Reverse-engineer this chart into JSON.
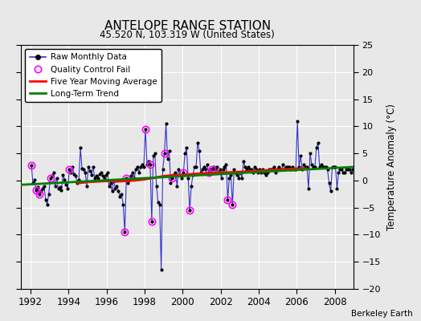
{
  "title": "ANTELOPE RANGE STATION",
  "subtitle": "45.520 N, 103.319 W (United States)",
  "ylabel": "Temperature Anomaly (°C)",
  "credit": "Berkeley Earth",
  "xlim": [
    1991.5,
    2009.0
  ],
  "ylim": [
    -20,
    25
  ],
  "yticks": [
    -20,
    -15,
    -10,
    -5,
    0,
    5,
    10,
    15,
    20,
    25
  ],
  "xticks": [
    1992,
    1994,
    1996,
    1998,
    2000,
    2002,
    2004,
    2006,
    2008
  ],
  "bg_color": "#e8e8e8",
  "fig_color": "#e8e8e8",
  "grid_color": "white",
  "raw_line_color": "#3333cc",
  "raw_dot_color": "black",
  "qc_color": "magenta",
  "moving_avg_color": "red",
  "trend_color": "green",
  "raw_monthly_data": [
    [
      1992.042,
      2.8
    ],
    [
      1992.125,
      -0.5
    ],
    [
      1992.208,
      0.2
    ],
    [
      1992.292,
      -1.8
    ],
    [
      1992.375,
      -1.2
    ],
    [
      1992.458,
      -2.5
    ],
    [
      1992.542,
      -2.0
    ],
    [
      1992.625,
      -1.5
    ],
    [
      1992.708,
      -1.0
    ],
    [
      1992.792,
      -3.5
    ],
    [
      1992.875,
      -4.5
    ],
    [
      1992.958,
      -2.5
    ],
    [
      1993.042,
      0.5
    ],
    [
      1993.125,
      0.8
    ],
    [
      1993.208,
      1.5
    ],
    [
      1993.292,
      -1.0
    ],
    [
      1993.375,
      0.5
    ],
    [
      1993.458,
      -1.5
    ],
    [
      1993.542,
      -1.2
    ],
    [
      1993.625,
      -1.8
    ],
    [
      1993.708,
      1.0
    ],
    [
      1993.792,
      0.2
    ],
    [
      1993.875,
      -0.8
    ],
    [
      1993.958,
      -1.5
    ],
    [
      1994.042,
      2.0
    ],
    [
      1994.125,
      1.5
    ],
    [
      1994.208,
      2.5
    ],
    [
      1994.292,
      1.2
    ],
    [
      1994.375,
      0.8
    ],
    [
      1994.458,
      -0.5
    ],
    [
      1994.542,
      0.2
    ],
    [
      1994.625,
      6.0
    ],
    [
      1994.708,
      2.2
    ],
    [
      1994.792,
      2.0
    ],
    [
      1994.875,
      1.5
    ],
    [
      1994.958,
      -1.0
    ],
    [
      1995.042,
      2.5
    ],
    [
      1995.125,
      1.8
    ],
    [
      1995.208,
      1.0
    ],
    [
      1995.292,
      2.5
    ],
    [
      1995.375,
      0.5
    ],
    [
      1995.458,
      0.8
    ],
    [
      1995.542,
      0.5
    ],
    [
      1995.625,
      1.2
    ],
    [
      1995.708,
      1.5
    ],
    [
      1995.792,
      0.8
    ],
    [
      1995.875,
      0.5
    ],
    [
      1995.958,
      1.0
    ],
    [
      1996.042,
      1.5
    ],
    [
      1996.125,
      -1.0
    ],
    [
      1996.208,
      -0.5
    ],
    [
      1996.292,
      -2.0
    ],
    [
      1996.375,
      0.0
    ],
    [
      1996.458,
      -1.5
    ],
    [
      1996.542,
      -1.0
    ],
    [
      1996.625,
      -2.0
    ],
    [
      1996.708,
      -3.0
    ],
    [
      1996.792,
      -2.5
    ],
    [
      1996.875,
      -4.5
    ],
    [
      1996.958,
      -9.5
    ],
    [
      1997.042,
      0.5
    ],
    [
      1997.125,
      -0.5
    ],
    [
      1997.208,
      0.2
    ],
    [
      1997.292,
      0.8
    ],
    [
      1997.375,
      1.5
    ],
    [
      1997.458,
      0.5
    ],
    [
      1997.542,
      2.0
    ],
    [
      1997.625,
      2.5
    ],
    [
      1997.708,
      1.5
    ],
    [
      1997.792,
      2.5
    ],
    [
      1997.875,
      3.0
    ],
    [
      1997.958,
      2.5
    ],
    [
      1998.042,
      9.5
    ],
    [
      1998.125,
      3.0
    ],
    [
      1998.208,
      3.5
    ],
    [
      1998.292,
      3.0
    ],
    [
      1998.375,
      -7.5
    ],
    [
      1998.458,
      4.5
    ],
    [
      1998.542,
      5.0
    ],
    [
      1998.625,
      -1.0
    ],
    [
      1998.708,
      -4.0
    ],
    [
      1998.792,
      -4.5
    ],
    [
      1998.875,
      -16.5
    ],
    [
      1998.958,
      2.0
    ],
    [
      1999.042,
      5.0
    ],
    [
      1999.125,
      10.5
    ],
    [
      1999.208,
      4.0
    ],
    [
      1999.292,
      5.5
    ],
    [
      1999.375,
      -0.5
    ],
    [
      1999.458,
      0.5
    ],
    [
      1999.542,
      1.0
    ],
    [
      1999.625,
      1.5
    ],
    [
      1999.708,
      -1.0
    ],
    [
      1999.792,
      2.0
    ],
    [
      1999.875,
      1.0
    ],
    [
      1999.958,
      0.5
    ],
    [
      2000.042,
      1.5
    ],
    [
      2000.125,
      5.0
    ],
    [
      2000.208,
      6.0
    ],
    [
      2000.292,
      0.5
    ],
    [
      2000.375,
      -5.5
    ],
    [
      2000.458,
      -1.0
    ],
    [
      2000.542,
      1.0
    ],
    [
      2000.625,
      2.5
    ],
    [
      2000.708,
      2.5
    ],
    [
      2000.792,
      7.0
    ],
    [
      2000.875,
      5.5
    ],
    [
      2000.958,
      1.5
    ],
    [
      2001.042,
      2.0
    ],
    [
      2001.125,
      2.5
    ],
    [
      2001.208,
      2.0
    ],
    [
      2001.292,
      3.0
    ],
    [
      2001.375,
      1.5
    ],
    [
      2001.458,
      2.0
    ],
    [
      2001.542,
      2.0
    ],
    [
      2001.625,
      2.5
    ],
    [
      2001.708,
      2.0
    ],
    [
      2001.792,
      2.5
    ],
    [
      2001.875,
      1.5
    ],
    [
      2001.958,
      2.0
    ],
    [
      2002.042,
      0.5
    ],
    [
      2002.125,
      2.0
    ],
    [
      2002.208,
      2.5
    ],
    [
      2002.292,
      3.0
    ],
    [
      2002.375,
      -3.5
    ],
    [
      2002.458,
      0.5
    ],
    [
      2002.542,
      1.0
    ],
    [
      2002.625,
      -4.5
    ],
    [
      2002.708,
      2.0
    ],
    [
      2002.792,
      1.5
    ],
    [
      2002.875,
      1.0
    ],
    [
      2002.958,
      0.5
    ],
    [
      2003.042,
      1.5
    ],
    [
      2003.125,
      0.5
    ],
    [
      2003.208,
      3.5
    ],
    [
      2003.292,
      2.5
    ],
    [
      2003.375,
      2.0
    ],
    [
      2003.458,
      2.5
    ],
    [
      2003.542,
      2.0
    ],
    [
      2003.625,
      2.0
    ],
    [
      2003.708,
      1.5
    ],
    [
      2003.792,
      2.5
    ],
    [
      2003.875,
      2.0
    ],
    [
      2003.958,
      1.5
    ],
    [
      2004.042,
      2.0
    ],
    [
      2004.125,
      1.5
    ],
    [
      2004.208,
      2.0
    ],
    [
      2004.292,
      1.5
    ],
    [
      2004.375,
      1.0
    ],
    [
      2004.458,
      1.5
    ],
    [
      2004.542,
      2.0
    ],
    [
      2004.625,
      2.0
    ],
    [
      2004.708,
      2.0
    ],
    [
      2004.792,
      2.5
    ],
    [
      2004.875,
      1.5
    ],
    [
      2004.958,
      2.0
    ],
    [
      2005.042,
      2.5
    ],
    [
      2005.125,
      2.0
    ],
    [
      2005.208,
      2.0
    ],
    [
      2005.292,
      3.0
    ],
    [
      2005.375,
      2.0
    ],
    [
      2005.458,
      2.5
    ],
    [
      2005.542,
      2.5
    ],
    [
      2005.625,
      2.5
    ],
    [
      2005.708,
      2.0
    ],
    [
      2005.792,
      2.5
    ],
    [
      2005.875,
      2.0
    ],
    [
      2005.958,
      2.0
    ],
    [
      2006.042,
      11.0
    ],
    [
      2006.125,
      2.5
    ],
    [
      2006.208,
      4.5
    ],
    [
      2006.292,
      2.0
    ],
    [
      2006.375,
      3.0
    ],
    [
      2006.458,
      2.5
    ],
    [
      2006.542,
      2.5
    ],
    [
      2006.625,
      -1.5
    ],
    [
      2006.708,
      5.0
    ],
    [
      2006.792,
      3.0
    ],
    [
      2006.875,
      2.5
    ],
    [
      2006.958,
      2.5
    ],
    [
      2007.042,
      6.0
    ],
    [
      2007.125,
      7.0
    ],
    [
      2007.208,
      2.5
    ],
    [
      2007.292,
      3.0
    ],
    [
      2007.375,
      2.5
    ],
    [
      2007.458,
      2.5
    ],
    [
      2007.542,
      2.5
    ],
    [
      2007.625,
      2.0
    ],
    [
      2007.708,
      -0.5
    ],
    [
      2007.792,
      -2.0
    ],
    [
      2007.875,
      2.5
    ],
    [
      2007.958,
      2.5
    ],
    [
      2008.042,
      2.5
    ],
    [
      2008.125,
      -1.5
    ],
    [
      2008.208,
      1.5
    ],
    [
      2008.292,
      2.0
    ],
    [
      2008.375,
      2.0
    ],
    [
      2008.458,
      1.5
    ],
    [
      2008.542,
      1.5
    ],
    [
      2008.625,
      2.0
    ],
    [
      2008.708,
      2.0
    ],
    [
      2008.792,
      2.0
    ],
    [
      2008.875,
      1.5
    ],
    [
      2008.958,
      2.0
    ]
  ],
  "qc_fail_points": [
    [
      1992.042,
      2.8
    ],
    [
      1992.292,
      -1.8
    ],
    [
      1992.458,
      -2.5
    ],
    [
      1993.042,
      0.5
    ],
    [
      1994.042,
      2.0
    ],
    [
      1996.958,
      -9.5
    ],
    [
      1997.042,
      0.5
    ],
    [
      1998.042,
      9.5
    ],
    [
      1998.292,
      3.0
    ],
    [
      1998.375,
      -7.5
    ],
    [
      1999.042,
      5.0
    ],
    [
      1999.458,
      0.5
    ],
    [
      2000.042,
      1.5
    ],
    [
      2000.375,
      -5.5
    ],
    [
      2001.375,
      1.5
    ],
    [
      2001.542,
      2.0
    ],
    [
      2002.375,
      -3.5
    ],
    [
      2002.625,
      -4.5
    ]
  ],
  "moving_avg": [
    [
      1994.5,
      -0.5
    ],
    [
      1995.0,
      -0.3
    ],
    [
      1995.5,
      -0.2
    ],
    [
      1996.0,
      -0.1
    ],
    [
      1996.5,
      -0.2
    ],
    [
      1997.0,
      -0.1
    ],
    [
      1997.5,
      0.0
    ],
    [
      1998.0,
      0.2
    ],
    [
      1998.5,
      0.5
    ],
    [
      1999.0,
      0.8
    ],
    [
      1999.5,
      1.0
    ],
    [
      2000.0,
      1.0
    ],
    [
      2000.5,
      1.2
    ],
    [
      2001.0,
      1.3
    ],
    [
      2001.5,
      1.4
    ],
    [
      2002.0,
      1.5
    ],
    [
      2002.5,
      1.5
    ],
    [
      2003.0,
      1.6
    ],
    [
      2003.5,
      1.7
    ],
    [
      2004.0,
      1.8
    ],
    [
      2004.5,
      1.9
    ],
    [
      2005.0,
      2.0
    ],
    [
      2005.5,
      2.1
    ],
    [
      2006.0,
      2.2
    ],
    [
      2006.5,
      2.2
    ]
  ],
  "trend_x": [
    1991.5,
    2009.0
  ],
  "trend_y": [
    -0.8,
    2.5
  ]
}
